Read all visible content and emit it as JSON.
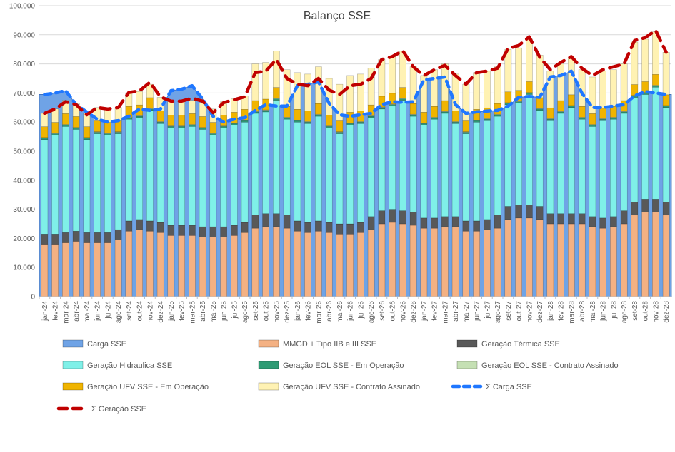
{
  "chart_data": {
    "type": "bar",
    "title": "Balanço SSE",
    "xlabel": "",
    "ylabel": "",
    "ylim": [
      0,
      100000
    ],
    "yticks": [
      "0",
      "10.000",
      "20.000",
      "30.000",
      "40.000",
      "50.000",
      "60.000",
      "70.000",
      "80.000",
      "90.000",
      "100.000"
    ],
    "grid": true,
    "legend_position": "bottom",
    "categories": [
      "jan-24",
      "fev-24",
      "mar-24",
      "abr-24",
      "mai-24",
      "jun-24",
      "jul-24",
      "ago-24",
      "set-24",
      "out-24",
      "nov-24",
      "dez-24",
      "jan-25",
      "fev-25",
      "mar-25",
      "abr-25",
      "mai-25",
      "jun-25",
      "jul-25",
      "ago-25",
      "set-25",
      "out-25",
      "nov-25",
      "dez-25",
      "jan-26",
      "fev-26",
      "mar-26",
      "abr-26",
      "mai-26",
      "jun-26",
      "jul-26",
      "ago-26",
      "set-26",
      "out-26",
      "nov-26",
      "dez-26",
      "jan-27",
      "fev-27",
      "mar-27",
      "abr-27",
      "mai-27",
      "jun-27",
      "jul-27",
      "ago-27",
      "set-27",
      "out-27",
      "nov-27",
      "dez-27",
      "jan-28",
      "fev-28",
      "mar-28",
      "abr-28",
      "mai-28",
      "jun-28",
      "jul-28",
      "ago-28",
      "set-28",
      "out-28",
      "nov-28",
      "dez-28"
    ],
    "series": [
      {
        "name": "Carga SSE",
        "kind": "area",
        "color": "#6fa3e6",
        "values": [
          69500,
          70000,
          70800,
          66000,
          63500,
          61000,
          60000,
          60500,
          62000,
          64500,
          64000,
          64500,
          70800,
          71300,
          72500,
          68000,
          62000,
          60000,
          61000,
          61500,
          64000,
          66000,
          65500,
          65500,
          72500,
          73000,
          73800,
          66500,
          62500,
          62000,
          62500,
          63000,
          66000,
          67000,
          66800,
          67000,
          74500,
          75000,
          75500,
          66000,
          63000,
          63500,
          63800,
          64000,
          65500,
          68500,
          68800,
          68500,
          75500,
          76000,
          77500,
          70000,
          65000,
          65000,
          65500,
          66000,
          69000,
          70500,
          70000,
          69500
        ]
      },
      {
        "name": "MMGD + Tipo IIB e III SSE",
        "color": "#f4b183",
        "values": [
          18000,
          18000,
          18500,
          19000,
          18500,
          18500,
          18500,
          19500,
          22500,
          23000,
          22500,
          22000,
          21000,
          21000,
          21000,
          20500,
          20500,
          20500,
          21000,
          22000,
          23500,
          24000,
          24000,
          23500,
          22500,
          22000,
          22500,
          22000,
          21500,
          21500,
          22000,
          23000,
          25000,
          25500,
          25000,
          24500,
          23500,
          23500,
          24000,
          24000,
          22500,
          22500,
          23000,
          23500,
          26500,
          27000,
          27000,
          26500,
          25000,
          25000,
          25000,
          25000,
          24000,
          23500,
          24000,
          25000,
          28000,
          29000,
          29000,
          28000
        ]
      },
      {
        "name": "Geração Térmica SSE",
        "color": "#595959",
        "values": [
          3500,
          3500,
          3500,
          3500,
          3500,
          3500,
          3500,
          3500,
          3500,
          3500,
          3500,
          3500,
          3500,
          3500,
          3500,
          3500,
          3500,
          3500,
          3500,
          3500,
          4500,
          4500,
          4500,
          4500,
          3500,
          3500,
          3500,
          3500,
          3500,
          3500,
          3500,
          4500,
          4500,
          4500,
          4500,
          4500,
          3500,
          3500,
          3500,
          3500,
          3500,
          3500,
          3500,
          4500,
          4500,
          4500,
          4500,
          4500,
          3500,
          3500,
          3500,
          3500,
          3500,
          3500,
          3500,
          4500,
          4500,
          4500,
          4500,
          4500
        ]
      },
      {
        "name": "Geração Hidraulica SSE",
        "color": "#7ff0e8",
        "values": [
          32500,
          34000,
          36500,
          35000,
          32000,
          34000,
          33500,
          33000,
          35000,
          35000,
          38000,
          34000,
          33500,
          33500,
          34000,
          33500,
          31500,
          34000,
          34500,
          34500,
          35000,
          35000,
          39000,
          33000,
          34000,
          34000,
          36000,
          32500,
          31000,
          34000,
          34000,
          34000,
          35000,
          35500,
          38000,
          33000,
          32000,
          34000,
          35500,
          32000,
          30000,
          34000,
          34000,
          34000,
          35000,
          35000,
          38000,
          33000,
          32000,
          34500,
          36500,
          32500,
          31000,
          33500,
          33500,
          33500,
          36000,
          36000,
          38500,
          32500
        ]
      },
      {
        "name": "Geração EOL SSE - Em Operação",
        "color": "#2e9b74",
        "values": [
          500,
          500,
          500,
          500,
          500,
          500,
          500,
          500,
          500,
          500,
          500,
          500,
          500,
          500,
          500,
          500,
          500,
          500,
          500,
          500,
          500,
          500,
          500,
          500,
          500,
          500,
          500,
          500,
          500,
          500,
          500,
          500,
          500,
          500,
          500,
          500,
          500,
          500,
          500,
          500,
          500,
          500,
          500,
          500,
          500,
          500,
          500,
          500,
          500,
          500,
          500,
          500,
          500,
          500,
          500,
          500,
          500,
          500,
          500,
          500
        ]
      },
      {
        "name": "Geração EOL SSE - Contrato Assinado",
        "color": "#c5e0b4",
        "values": [
          200,
          200,
          200,
          200,
          200,
          200,
          200,
          200,
          200,
          200,
          200,
          200,
          200,
          200,
          200,
          200,
          200,
          200,
          200,
          200,
          200,
          200,
          200,
          200,
          200,
          200,
          200,
          200,
          200,
          200,
          200,
          200,
          200,
          200,
          200,
          200,
          200,
          200,
          200,
          200,
          200,
          200,
          200,
          200,
          200,
          200,
          200,
          200,
          200,
          200,
          200,
          200,
          200,
          200,
          200,
          200,
          200,
          200,
          200,
          200
        ]
      },
      {
        "name": "Geração UFV SSE - Em Operação",
        "color": "#f0b400",
        "values": [
          3700,
          3700,
          3700,
          3700,
          3700,
          3700,
          3700,
          3700,
          3700,
          3700,
          3700,
          3700,
          3700,
          3700,
          3700,
          3700,
          3700,
          3700,
          3700,
          3700,
          3700,
          3700,
          3700,
          3700,
          3700,
          3700,
          3700,
          3700,
          3700,
          3700,
          3700,
          3700,
          3700,
          3700,
          3700,
          3700,
          3700,
          3700,
          3700,
          3700,
          3700,
          3700,
          3700,
          3700,
          3700,
          3700,
          3700,
          3700,
          3700,
          3700,
          3700,
          3700,
          3700,
          3700,
          3700,
          3700,
          3700,
          3700,
          3700,
          3700
        ]
      },
      {
        "name": "Geração UFV SSE - Contrato Assinado",
        "color": "#fff2b3",
        "values": [
          4600,
          4600,
          4600,
          4600,
          4600,
          4600,
          4600,
          4600,
          4600,
          4600,
          4600,
          4600,
          4600,
          4600,
          4600,
          4600,
          4600,
          4600,
          4600,
          4600,
          12600,
          12600,
          12600,
          12600,
          12600,
          12600,
          12600,
          12600,
          12600,
          12600,
          12600,
          12600,
          12600,
          12600,
          12600,
          12600,
          12600,
          12600,
          12600,
          12600,
          12600,
          12600,
          12600,
          12600,
          14600,
          14600,
          14600,
          14600,
          12600,
          12600,
          12600,
          12600,
          12600,
          12600,
          12600,
          12600,
          14600,
          14600,
          14600,
          14600
        ]
      },
      {
        "name": "Σ Carga SSE",
        "kind": "line",
        "color": "#1f77ff",
        "style": "dashed",
        "values": [
          69500,
          70000,
          70800,
          66000,
          63500,
          61000,
          60000,
          60500,
          62000,
          64500,
          64000,
          64500,
          70800,
          71300,
          72500,
          68000,
          62000,
          60000,
          61000,
          61500,
          64000,
          66000,
          65500,
          65500,
          72500,
          73000,
          73800,
          66500,
          62500,
          62000,
          62500,
          63000,
          66000,
          67000,
          66800,
          67000,
          74500,
          75000,
          75500,
          66000,
          63000,
          63500,
          63800,
          64000,
          65500,
          68500,
          68800,
          68500,
          75500,
          76000,
          77500,
          70000,
          65000,
          65000,
          65500,
          66000,
          69000,
          70500,
          70000,
          69500
        ]
      },
      {
        "name": "Σ Geração SSE",
        "kind": "line",
        "color": "#c00000",
        "style": "dashed",
        "values": [
          63000,
          64500,
          67000,
          66000,
          62500,
          65000,
          64500,
          65000,
          70200,
          70700,
          73700,
          68700,
          67200,
          67200,
          68200,
          67200,
          63200,
          66700,
          67700,
          68700,
          77000,
          77500,
          81500,
          75000,
          73000,
          72500,
          75000,
          71000,
          69500,
          72500,
          73000,
          75000,
          81500,
          82500,
          84500,
          79000,
          76000,
          78000,
          79500,
          76000,
          73000,
          77000,
          77500,
          78500,
          85300,
          86300,
          89300,
          82300,
          78000,
          80500,
          82500,
          78500,
          76000,
          78000,
          79000,
          80000,
          88000,
          89000,
          91500,
          84000
        ]
      }
    ]
  }
}
